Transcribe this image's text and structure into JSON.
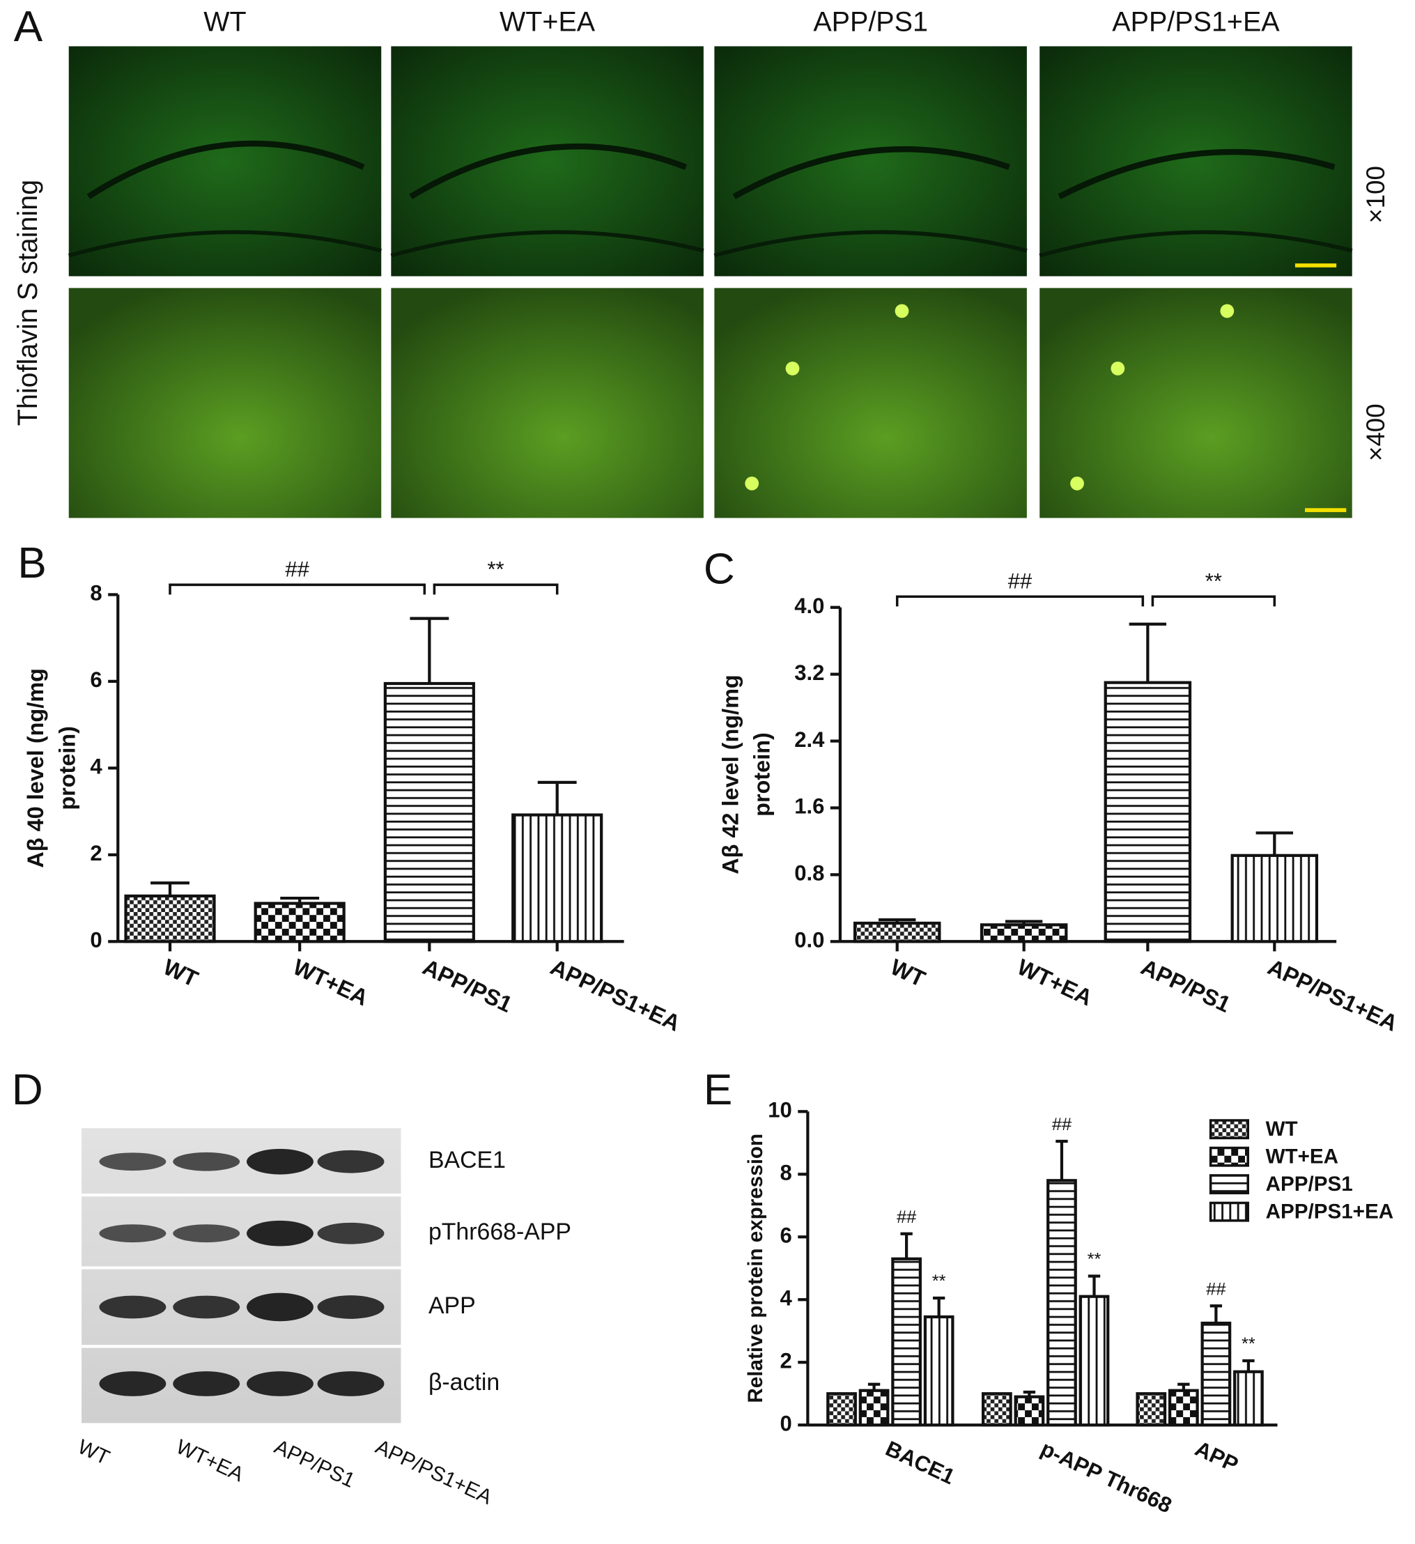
{
  "panel_labels": [
    "A",
    "B",
    "C",
    "D",
    "E"
  ],
  "panel_a": {
    "columns": [
      "WT",
      "WT+EA",
      "APP/PS1",
      "APP/PS1+EA"
    ],
    "row_label": "Thioflavin S staining",
    "magnifications": [
      "×100",
      "×400"
    ]
  },
  "panel_d": {
    "bands": [
      "BACE1",
      "pThr668-APP",
      "APP",
      "β-actin"
    ],
    "lanes": [
      "WT",
      "WT+EA",
      "APP/PS1",
      "APP/PS1+EA"
    ]
  },
  "chart_data": [
    {
      "type": "bar",
      "ylabel_lines": [
        "Aβ 40 level (ng/mg",
        "protein)"
      ],
      "categories": [
        "WT",
        "WT+EA",
        "APP/PS1",
        "APP/PS1+EA"
      ],
      "values": [
        1.05,
        0.88,
        5.95,
        2.92
      ],
      "errors": [
        0.3,
        0.12,
        1.5,
        0.75
      ],
      "patterns": [
        "checker-small",
        "checker-large",
        "hlines",
        "vlines"
      ],
      "color": "#111111",
      "comparisons": [
        "##",
        "**"
      ],
      "ylim": [
        0,
        8
      ],
      "yticks": [
        0,
        2,
        4,
        6,
        8
      ]
    },
    {
      "type": "bar",
      "ylabel_lines": [
        "Aβ 42 level (ng/mg",
        "protein)"
      ],
      "categories": [
        "WT",
        "WT+EA",
        "APP/PS1",
        "APP/PS1+EA"
      ],
      "values": [
        0.22,
        0.2,
        3.1,
        1.03
      ],
      "errors": [
        0.04,
        0.04,
        0.7,
        0.27
      ],
      "patterns": [
        "checker-small",
        "checker-large",
        "hlines",
        "vlines"
      ],
      "color": "#111111",
      "comparisons": [
        "##",
        "**"
      ],
      "ylim": [
        0,
        4
      ],
      "yticks": [
        {
          "value": 0,
          "label": "0.0"
        },
        {
          "value": 0.8,
          "label": "0.8"
        },
        {
          "value": 1.6,
          "label": "1.6"
        },
        {
          "value": 2.4,
          "label": "2.4"
        },
        {
          "value": 3.2,
          "label": "3.2"
        },
        {
          "value": 4,
          "label": "4.0"
        }
      ]
    },
    {
      "type": "grouped-bar",
      "ylabel": "Relative protein expression",
      "categories": [
        "BACE1",
        "p-APP Thr668",
        "APP"
      ],
      "series": [
        {
          "name": "WT",
          "color": "#111111",
          "pattern": "checker-small",
          "values": [
            1,
            1,
            1
          ]
        },
        {
          "name": "WT+EA",
          "color": "#111111",
          "pattern": "checker-large",
          "values": [
            1.1,
            0.9,
            1.1
          ],
          "errors": [
            0.2,
            0.15,
            0.2
          ]
        },
        {
          "name": "APP/PS1",
          "color": "#111111",
          "pattern": "hlines",
          "values": [
            5.3,
            7.8,
            3.25
          ],
          "errors": [
            0.8,
            1.25,
            0.55
          ],
          "marks": [
            "##",
            "##",
            "##"
          ]
        },
        {
          "name": "APP/PS1+EA",
          "color": "#111111",
          "pattern": "vlines",
          "values": [
            3.45,
            4.1,
            1.7
          ],
          "errors": [
            0.6,
            0.65,
            0.35
          ],
          "marks": [
            "**",
            "**",
            "**"
          ]
        }
      ],
      "ylim": [
        0,
        10
      ],
      "yticks": [
        0,
        2,
        4,
        6,
        8,
        10
      ],
      "legend": "upper-right"
    }
  ]
}
